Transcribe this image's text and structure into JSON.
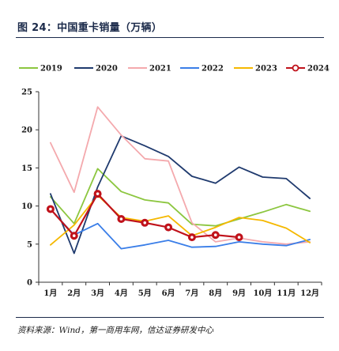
{
  "figure": {
    "title": "图 24：中国重卡销量（万辆）",
    "source": "资料来源：Wind，第一商用车网，信达证券研发中心"
  },
  "chart_data": {
    "type": "line",
    "categories": [
      "1月",
      "2月",
      "3月",
      "4月",
      "5月",
      "6月",
      "7月",
      "8月",
      "9月",
      "10月",
      "11月",
      "12月"
    ],
    "ylim": [
      0,
      25
    ],
    "yticks": [
      "0",
      "5",
      "10",
      "15",
      "20",
      "25"
    ],
    "legend_position": "top",
    "grid": false,
    "series": [
      {
        "name": "2019",
        "color": "#8cc63f",
        "marker": false,
        "values": [
          11.2,
          7.7,
          14.9,
          11.9,
          10.8,
          10.4,
          7.6,
          7.4,
          8.3,
          9.2,
          10.2,
          9.3
        ]
      },
      {
        "name": "2020",
        "color": "#1f3a6e",
        "marker": false,
        "values": [
          11.6,
          3.8,
          12.5,
          19.2,
          17.9,
          16.5,
          13.9,
          13.0,
          15.1,
          13.8,
          13.6,
          11.0
        ]
      },
      {
        "name": "2021",
        "color": "#f4a9ad",
        "marker": false,
        "values": [
          18.3,
          11.8,
          23.0,
          19.3,
          16.2,
          15.9,
          7.8,
          5.3,
          5.8,
          5.3,
          5.0,
          5.3
        ]
      },
      {
        "name": "2022",
        "color": "#3a7ee8",
        "marker": false,
        "values": [
          9.6,
          6.2,
          7.7,
          4.4,
          4.9,
          5.5,
          4.6,
          4.7,
          5.3,
          5.0,
          4.8,
          5.6
        ]
      },
      {
        "name": "2023",
        "color": "#f5b800",
        "marker": false,
        "values": [
          4.9,
          7.5,
          11.4,
          8.5,
          8.0,
          8.7,
          6.1,
          7.2,
          8.5,
          8.1,
          7.1,
          5.2
        ]
      },
      {
        "name": "2024",
        "color": "#c0121b",
        "marker": true,
        "values": [
          9.6,
          6.1,
          11.6,
          8.3,
          7.8,
          7.2,
          5.9,
          6.2,
          5.9,
          null,
          null,
          null
        ]
      }
    ]
  }
}
